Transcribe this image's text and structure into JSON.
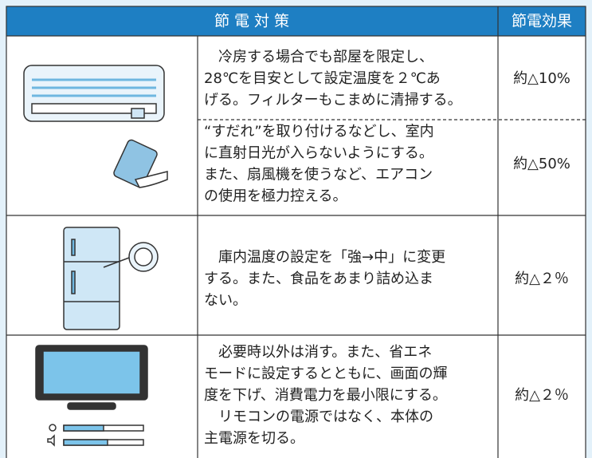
{
  "header": {
    "title": "節 電 対 策",
    "effect": "節電効果"
  },
  "rows": [
    {
      "lines": [
        "　冷房する場合でも部屋を限定し、",
        "28℃を目安として設定温度を２℃あ",
        "げる。フィルターもこまめに清掃する。"
      ],
      "effect": "約△10%"
    },
    {
      "lines": [
        "“すだれ”を取り付けるなどし、室内",
        "に直射日光が入らないようにする。",
        "また、扇風機を使うなど、エアコン",
        "の使用を極力控える。"
      ],
      "effect": "約△50%"
    },
    {
      "lines": [
        "　庫内温度の設定を「強→中」に変更",
        "する。また、食品をあまり詰め込ま",
        "ない。"
      ],
      "effect": "約△２％"
    },
    {
      "lines": [
        "　必要時以外は消す。また、省エネ",
        "モードに設定するとともに、画面の輝",
        "度を下げ、消費電力を最小限にする。",
        "　リモコンの電源ではなく、本体の",
        "主電源を切る。"
      ],
      "effect": "約△２％"
    }
  ]
}
